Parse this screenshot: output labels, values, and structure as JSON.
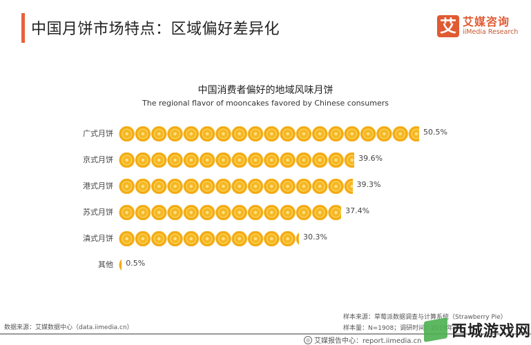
{
  "header": {
    "title": "中国月饼市场特点：区域偏好差异化",
    "accent_color": "#e8613a"
  },
  "logo": {
    "mark": "艾",
    "name_cn": "艾媒咨询",
    "name_en": "iiMedia Research",
    "brand_color": "#e05a32"
  },
  "chart": {
    "title": "中国消费者偏好的地域风味月饼",
    "subtitle": "The regional flavor of mooncakes favored by Chinese consumers"
  },
  "chart_data": {
    "type": "bar",
    "orientation": "horizontal",
    "title": "中国消费者偏好的地域风味月饼",
    "subtitle": "The regional flavor of mooncakes favored by Chinese consumers",
    "categories": [
      "广式月饼",
      "京式月饼",
      "港式月饼",
      "苏式月饼",
      "滇式月饼",
      "其他"
    ],
    "values": [
      50.5,
      39.6,
      39.3,
      37.4,
      30.3,
      0.5
    ],
    "value_labels": [
      "50.5%",
      "39.6%",
      "39.3%",
      "37.4%",
      "30.3%",
      "0.5%"
    ],
    "unit": "%",
    "xlabel": "",
    "ylabel": "",
    "xlim": [
      0,
      50.5
    ],
    "grid": false,
    "legend": null,
    "bar_style": "pictogram-mooncake-icons",
    "bar_color": "#f5b324"
  },
  "footer": {
    "data_source": "数据来源：艾媒数据中心（data.iimedia.cn）",
    "sample_source": "样本来源：草莓派数据调查与计算系统（Strawberry Pie）",
    "sample_size": "样本量：N=1908；调研时间：2019年8月",
    "report_center": "艾媒报告中心：report.iimedia.cn",
    "report_icon": "globe-icon"
  },
  "watermark": {
    "text": "西城游戏网"
  }
}
